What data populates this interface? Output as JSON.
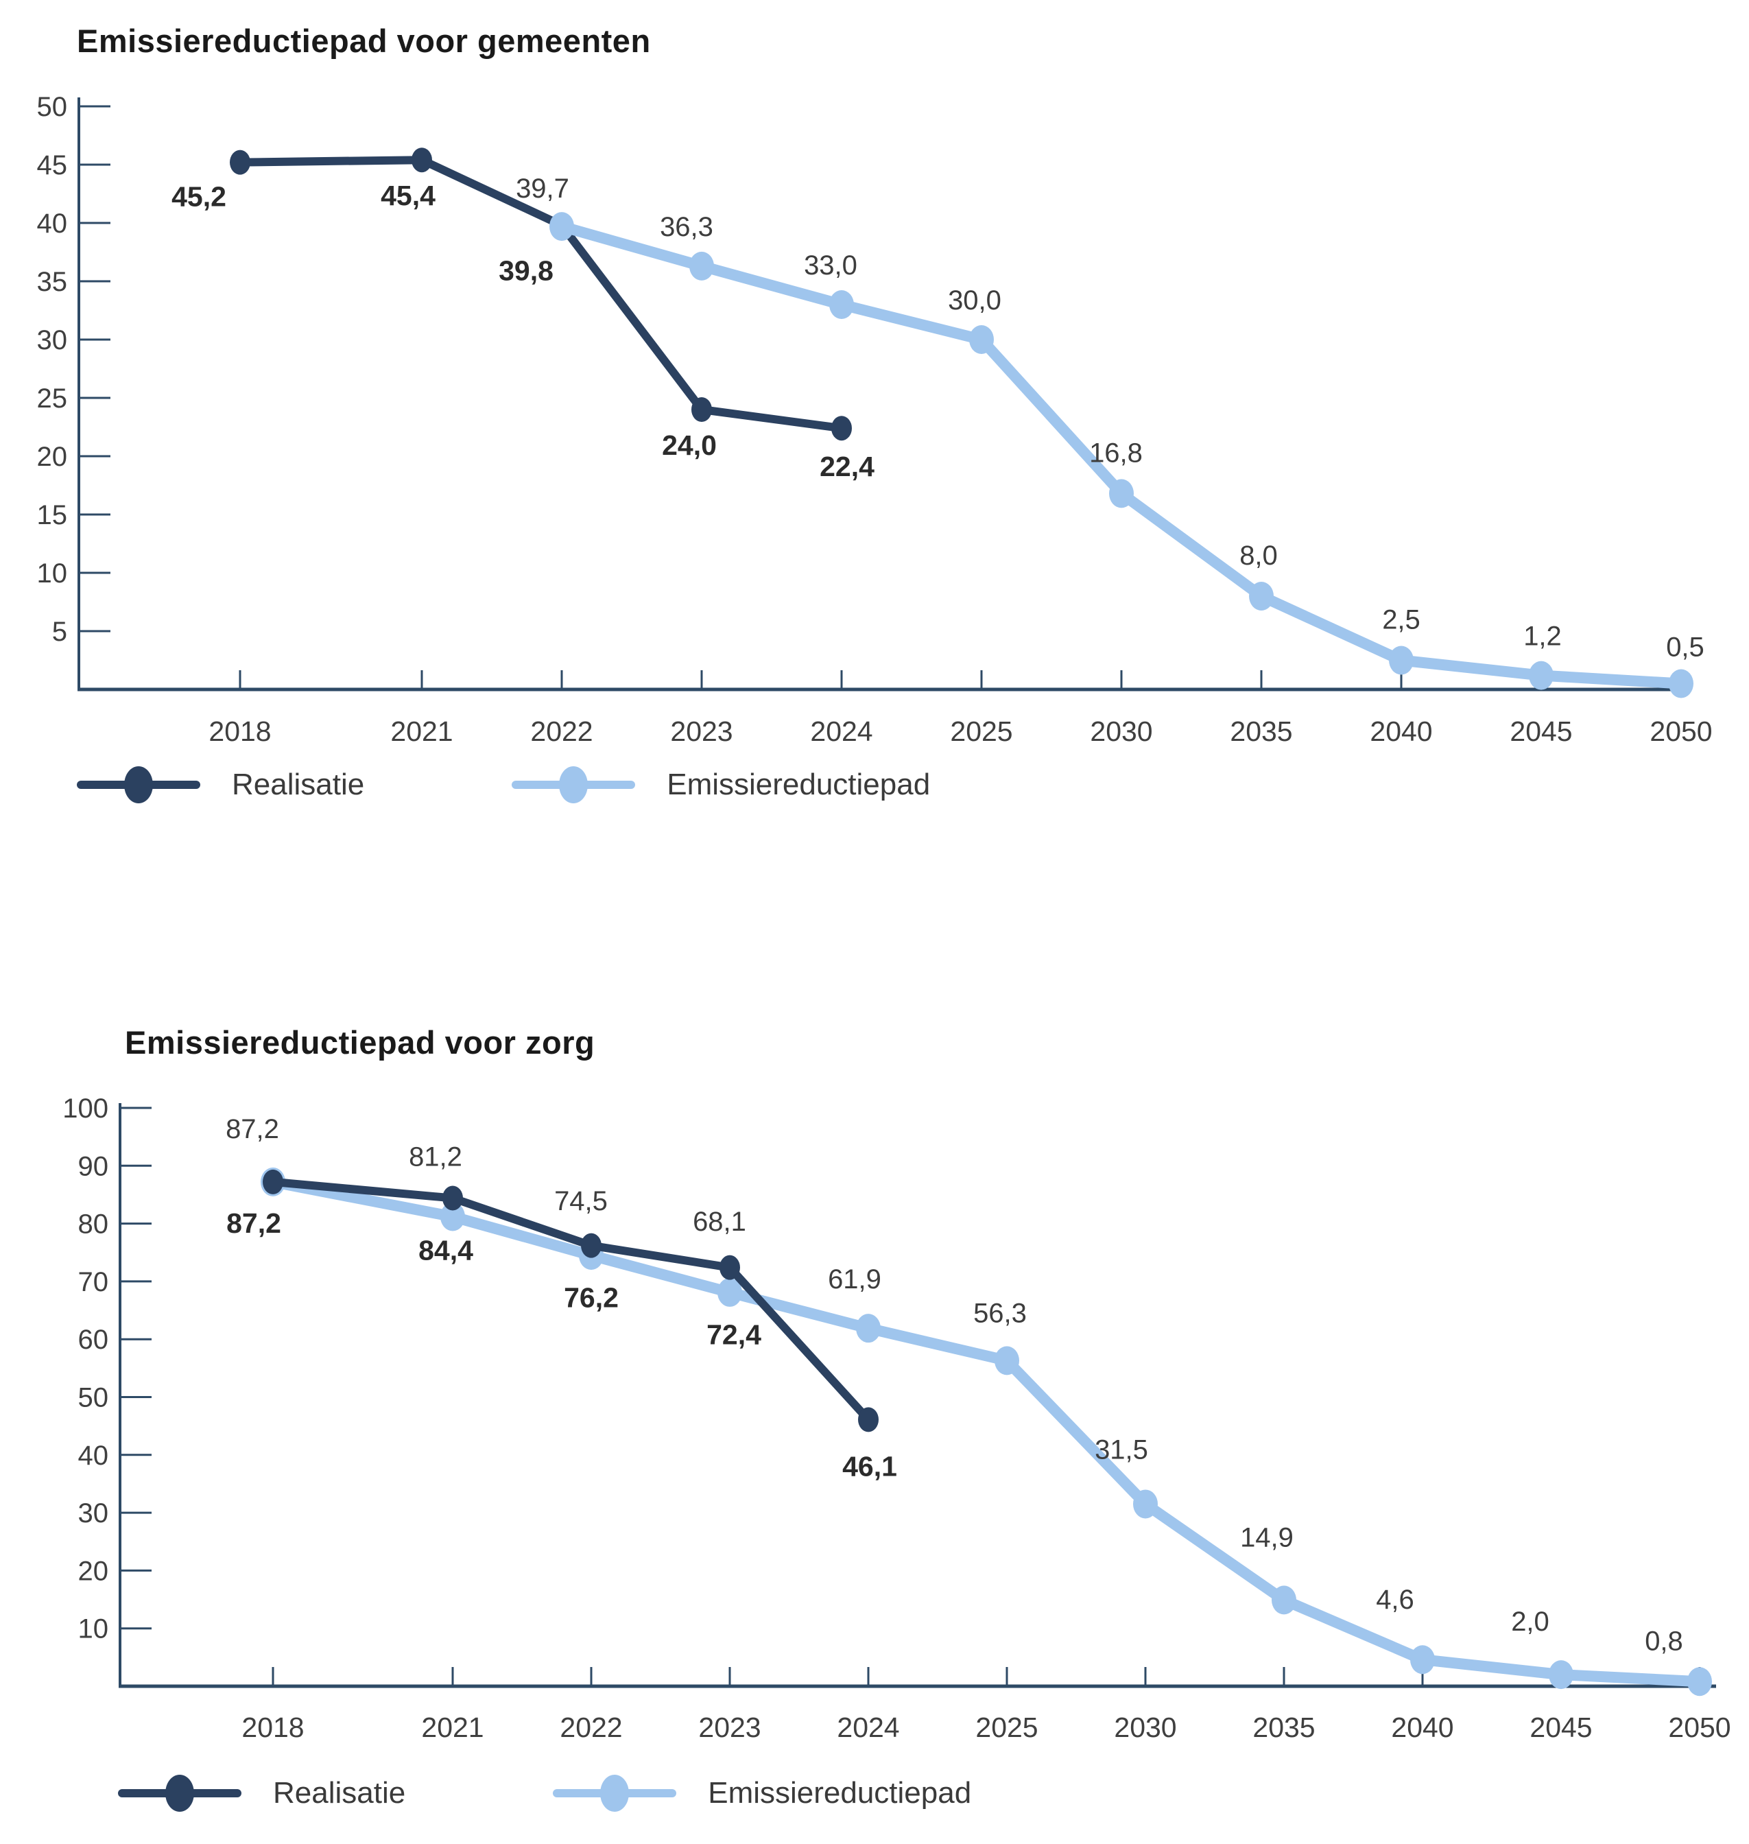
{
  "page": {
    "background": "#ffffff"
  },
  "colors": {
    "realisatie": "#2b4160",
    "emissiereductiepad": "#9fc5ed",
    "axis": "#2e4a66",
    "tick_label": "#3f3f3f",
    "value_label": "#3d3d3d",
    "value_label_bold": "#2b2b2b",
    "title": "#1a1a1a"
  },
  "chart_data": [
    {
      "type": "line",
      "title": "Emissiereductiepad voor gemeenten",
      "categories": [
        "2018",
        "2021",
        "2022",
        "2023",
        "2024",
        "2025",
        "2030",
        "2035",
        "2040",
        "2045",
        "2050"
      ],
      "ylim": [
        0,
        50
      ],
      "ytick_step": 5,
      "ytick_labels": [
        "5",
        "10",
        "15",
        "20",
        "25",
        "30",
        "35",
        "40",
        "45",
        "50"
      ],
      "grid": false,
      "legend_position": "bottom-left",
      "series": [
        {
          "name": "Realisatie",
          "color": "#2b4160",
          "line_width": 12,
          "point_rx": 15,
          "point_ry": 18,
          "bold_labels": true,
          "values": [
            45.2,
            45.4,
            39.8,
            24.0,
            22.4,
            null,
            null,
            null,
            null,
            null,
            null
          ],
          "labels": [
            "45,2",
            "45,4",
            "39,8",
            "24,0",
            "22,4",
            null,
            null,
            null,
            null,
            null,
            null
          ],
          "label_offsets": [
            [
              -60,
              64
            ],
            [
              -20,
              66
            ],
            [
              -52,
              80
            ],
            [
              -18,
              66
            ],
            [
              8,
              70
            ],
            null,
            null,
            null,
            null,
            null,
            null
          ]
        },
        {
          "name": "Emissiereductiepad",
          "color": "#9fc5ed",
          "line_width": 16,
          "point_rx": 18,
          "point_ry": 21,
          "bold_labels": false,
          "values": [
            null,
            null,
            39.7,
            36.3,
            33.0,
            30.0,
            16.8,
            8.0,
            2.5,
            1.2,
            0.5
          ],
          "labels": [
            null,
            null,
            "39,7",
            "36,3",
            "33,0",
            "30,0",
            "16,8",
            "8,0",
            "2,5",
            "1,2",
            "0,5"
          ],
          "label_offsets": [
            null,
            null,
            [
              -28,
              -42
            ],
            [
              -22,
              -44
            ],
            [
              -16,
              -44
            ],
            [
              -10,
              -44
            ],
            [
              -8,
              -46
            ],
            [
              -4,
              -46
            ],
            [
              0,
              -46
            ],
            [
              2,
              -44
            ],
            [
              6,
              -40
            ]
          ]
        }
      ],
      "legend": [
        {
          "label": "Realisatie",
          "color": "#2b4160"
        },
        {
          "label": "Emissiereductiepad",
          "color": "#9fc5ed"
        }
      ]
    },
    {
      "type": "line",
      "title": "Emissiereductiepad voor zorg",
      "categories": [
        "2018",
        "2021",
        "2022",
        "2023",
        "2024",
        "2025",
        "2030",
        "2035",
        "2040",
        "2045",
        "2050"
      ],
      "ylim": [
        0,
        100
      ],
      "ytick_step": 10,
      "ytick_labels": [
        "10",
        "20",
        "30",
        "40",
        "50",
        "60",
        "70",
        "80",
        "90",
        "100"
      ],
      "grid": false,
      "legend_position": "bottom-left",
      "series": [
        {
          "name": "Emissiereductiepad",
          "color": "#9fc5ed",
          "line_width": 16,
          "point_rx": 18,
          "point_ry": 21,
          "bold_labels": false,
          "values": [
            87.2,
            81.2,
            74.5,
            68.1,
            61.9,
            56.3,
            31.5,
            14.9,
            4.6,
            2.0,
            0.8
          ],
          "labels": [
            "87,2",
            "81,2",
            "74,5",
            "68,1",
            "61,9",
            "56,3",
            "31,5",
            "14,9",
            "4,6",
            "2,0",
            "0,8"
          ],
          "label_offsets": [
            [
              -30,
              -64
            ],
            [
              -25,
              -74
            ],
            [
              -15,
              -66
            ],
            [
              -15,
              -90
            ],
            [
              -20,
              -58
            ],
            [
              -10,
              -56
            ],
            [
              -35,
              -66
            ],
            [
              -25,
              -78
            ],
            [
              -40,
              -74
            ],
            [
              -45,
              -64
            ],
            [
              -52,
              -46
            ]
          ]
        },
        {
          "name": "Realisatie",
          "color": "#2b4160",
          "line_width": 12,
          "point_rx": 15,
          "point_ry": 18,
          "bold_labels": true,
          "values": [
            87.2,
            84.4,
            76.2,
            72.4,
            46.1,
            null,
            null,
            null,
            null,
            null,
            null
          ],
          "labels": [
            "87,2",
            "84,4",
            "76,2",
            "72,4",
            "46,1",
            null,
            null,
            null,
            null,
            null,
            null
          ],
          "label_offsets": [
            [
              -28,
              74
            ],
            [
              -10,
              90
            ],
            [
              0,
              90
            ],
            [
              6,
              112
            ],
            [
              2,
              82
            ],
            null,
            null,
            null,
            null,
            null,
            null
          ]
        }
      ],
      "legend": [
        {
          "label": "Realisatie",
          "color": "#2b4160"
        },
        {
          "label": "Emissiereductiepad",
          "color": "#9fc5ed"
        }
      ]
    }
  ]
}
